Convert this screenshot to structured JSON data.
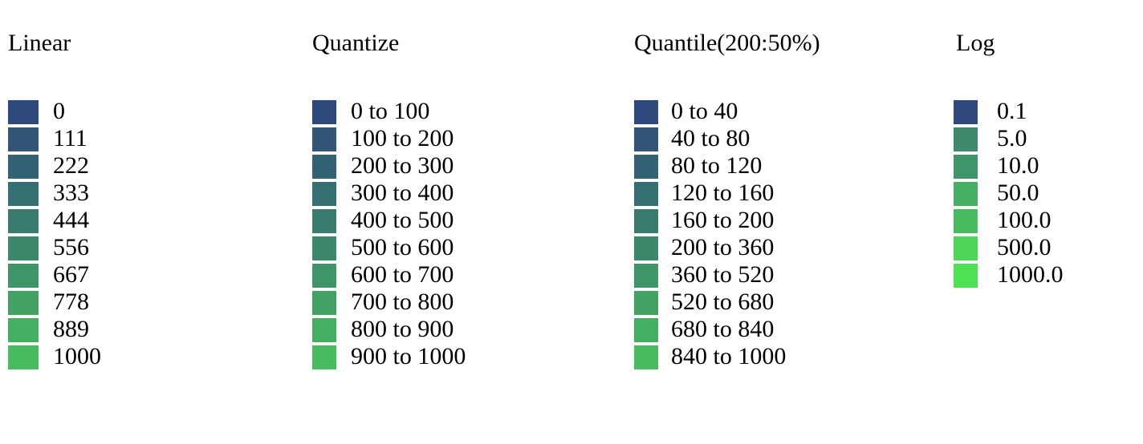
{
  "page": {
    "background_color": "#ffffff",
    "text_color": "#000000"
  },
  "chart_data": [
    {
      "type": "table",
      "title": "Linear",
      "legend_position": "column-1",
      "categories": [
        "0",
        "111",
        "222",
        "333",
        "444",
        "556",
        "667",
        "778",
        "889",
        "1000"
      ],
      "colors": [
        "#2e497b",
        "#315678",
        "#346275",
        "#366f71",
        "#397c6e",
        "#3c886b",
        "#3f9568",
        "#41a264",
        "#44ae61",
        "#47bb5e"
      ]
    },
    {
      "type": "table",
      "title": "Quantize",
      "legend_position": "column-2",
      "categories": [
        "0 to 100",
        "100 to 200",
        "200 to 300",
        "300 to 400",
        "400 to 500",
        "500 to 600",
        "600 to 700",
        "700 to 800",
        "800 to 900",
        "900 to 1000"
      ],
      "colors": [
        "#2e497b",
        "#315678",
        "#346275",
        "#366f71",
        "#397c6e",
        "#3c886b",
        "#3f9568",
        "#41a264",
        "#44ae61",
        "#47bb5e"
      ]
    },
    {
      "type": "table",
      "title": "Quantile(200:50%)",
      "legend_position": "column-3",
      "categories": [
        "0 to 40",
        "40 to 80",
        "80 to 120",
        "120 to 160",
        "160 to 200",
        "200 to 360",
        "360 to 520",
        "520 to 680",
        "680 to 840",
        "840 to 1000"
      ],
      "colors": [
        "#2e497b",
        "#315678",
        "#346275",
        "#366f71",
        "#397c6e",
        "#3c886b",
        "#3f9568",
        "#41a264",
        "#44ae61",
        "#47bb5e"
      ]
    },
    {
      "type": "table",
      "title": "Log",
      "legend_position": "column-4",
      "categories": [
        "0.1",
        "5.0",
        "10.0",
        "50.0",
        "100.0",
        "500.0",
        "1000.0"
      ],
      "colors": [
        "#2e497b",
        "#3c8a6b",
        "#3f9568",
        "#44b061",
        "#47bb5e",
        "#4dd657",
        "#4fe154"
      ]
    }
  ]
}
